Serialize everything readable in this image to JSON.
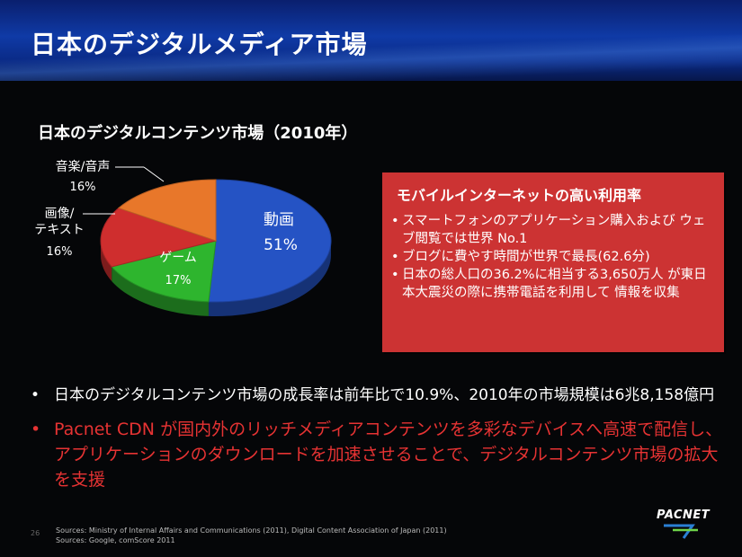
{
  "slide": {
    "title": "日本のデジタルメディア市場",
    "page_number": "26"
  },
  "chart": {
    "heading": "日本のデジタルコンテンツ市場（2010年）"
  },
  "chart_data": {
    "type": "pie",
    "title": "日本のデジタルコンテンツ市場（2010年）",
    "slices": [
      {
        "name": "動画",
        "value": 51,
        "value_label": "51%",
        "color": "#2553c4"
      },
      {
        "name": "ゲーム",
        "value": 17,
        "value_label": "17%",
        "color": "#2eb52e"
      },
      {
        "name": "画像/テキスト",
        "line1": "画像/",
        "line2": "テキスト",
        "value": 16,
        "value_label": "16%",
        "color": "#cf2e2e"
      },
      {
        "name": "音楽/音声",
        "value": 16,
        "value_label": "16%",
        "color": "#e8772a"
      }
    ]
  },
  "callout": {
    "title": "モバイルインターネットの高い利用率",
    "items": [
      "スマートフォンのアプリケーション購入および ウェブ閲覧では世界 No.1",
      "ブログに費やす時間が世界で最長(62.6分)",
      "日本の総人口の36.2%に相当する3,650万人 が東日本大震災の際に携帯電話を利用して 情報を収集"
    ]
  },
  "bullets": [
    {
      "dot": "•",
      "text": "日本のデジタルコンテンツ市場の成長率は前年比で10.9%、2010年の市場規模は6兆8,158億円"
    },
    {
      "dot": "•",
      "text": "Pacnet CDN が国内外のリッチメディアコンテンツを多彩なデバイスへ高速で配信し、アプリケーションのダウンロードを加速させることで、デジタルコンテンツ市場の拡大を支援"
    }
  ],
  "sources": {
    "line1": "Sources: Ministry of Internal Affairs and Communications (2011), Digital Content Association of Japan (2011)",
    "line2": "Sources: Google, comScore 2011"
  },
  "logo": {
    "text": "PACNET"
  }
}
